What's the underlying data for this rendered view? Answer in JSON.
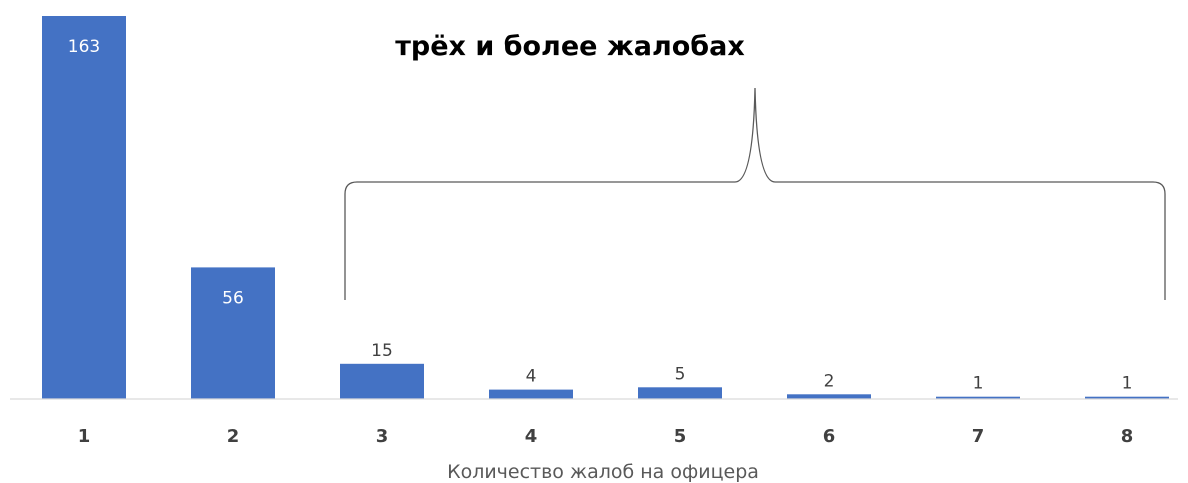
{
  "chart_data": {
    "type": "bar",
    "title": "",
    "xlabel": "Количество жалоб на офицера",
    "ylabel": "",
    "categories": [
      "1",
      "2",
      "3",
      "4",
      "5",
      "6",
      "7",
      "8"
    ],
    "values": [
      163,
      56,
      15,
      4,
      5,
      2,
      1,
      1
    ],
    "ylim": [
      0,
      163
    ],
    "grid": false,
    "bar_color": "#4472C4",
    "annotation": {
      "lines": [
        "",
        "трёх и более жалобах"
      ],
      "covers_categories": [
        "3",
        "4",
        "5",
        "6",
        "7",
        "8"
      ]
    }
  }
}
